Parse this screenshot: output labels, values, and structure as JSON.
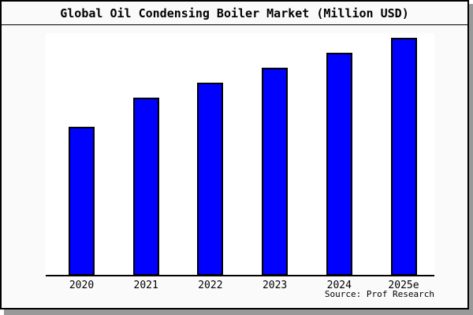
{
  "frame": {
    "background": "#fafafa",
    "border_color": "#000000",
    "shadow_color": "#999999",
    "plot_background": "#ffffff",
    "axis_color": "#000000"
  },
  "chart_data": {
    "type": "bar",
    "title": "Global Oil Condensing Boiler Market (Million USD)",
    "categories": [
      "2020",
      "2021",
      "2022",
      "2023",
      "2024",
      "2025e"
    ],
    "values": [
      100,
      120,
      130,
      140,
      150,
      160
    ],
    "value_scale": "relative units; y-axis has no tick labels in the image",
    "xlabel": "",
    "ylabel": "",
    "ylim": [
      0,
      166
    ],
    "grid": false,
    "legend": false,
    "bar_fill": "#0000ff",
    "bar_border": "#000000"
  },
  "source_note": {
    "label": "Source: Prof Research"
  }
}
